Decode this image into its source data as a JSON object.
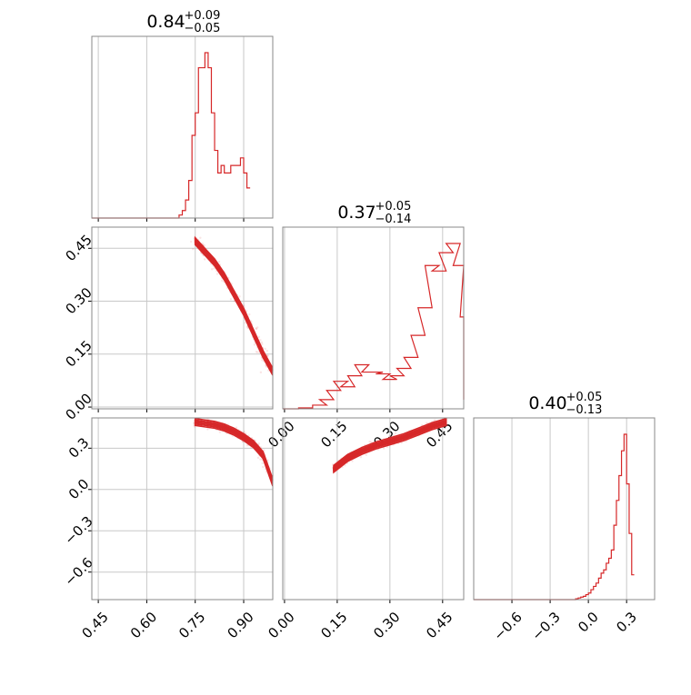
{
  "accent_color": "#d62728",
  "chart_data": [
    {
      "type": "histogram",
      "panel": "diag-1",
      "title": {
        "value": "0.84",
        "plus": "+0.09",
        "minus": "−0.05"
      },
      "xlim": [
        0.43,
        0.99
      ],
      "x_ticks": [
        0.45,
        0.6,
        0.75,
        0.9
      ],
      "grid": true,
      "bin_edges_start": 0.69,
      "bin_width": 0.01,
      "values": [
        0.0,
        0.02,
        0.05,
        0.12,
        0.25,
        0.55,
        0.7,
        1.0,
        1.0,
        1.1,
        1.0,
        0.7,
        0.45,
        0.3,
        0.35,
        0.3,
        0.3,
        0.35,
        0.35,
        0.35,
        0.4,
        0.3,
        0.2
      ]
    },
    {
      "type": "histogram",
      "panel": "diag-2",
      "title": {
        "value": "0.37",
        "plus": "+0.05",
        "minus": "−0.14"
      },
      "xlim": [
        -0.005,
        0.51
      ],
      "x_ticks": [
        0.0,
        0.15,
        0.3,
        0.45
      ],
      "grid": true,
      "values_xy": [
        [
          0.0,
          0.0
        ],
        [
          0.04,
          0.005
        ],
        [
          0.08,
          0.02
        ],
        [
          0.1,
          0.05
        ],
        [
          0.12,
          0.1
        ],
        [
          0.14,
          0.15
        ],
        [
          0.16,
          0.12
        ],
        [
          0.18,
          0.18
        ],
        [
          0.2,
          0.24
        ],
        [
          0.22,
          0.2
        ],
        [
          0.24,
          0.2
        ],
        [
          0.26,
          0.19
        ],
        [
          0.28,
          0.16
        ],
        [
          0.3,
          0.18
        ],
        [
          0.32,
          0.22
        ],
        [
          0.34,
          0.28
        ],
        [
          0.36,
          0.4
        ],
        [
          0.38,
          0.55
        ],
        [
          0.4,
          0.78
        ],
        [
          0.42,
          0.75
        ],
        [
          0.44,
          0.85
        ],
        [
          0.46,
          0.9
        ],
        [
          0.48,
          0.78
        ],
        [
          0.5,
          0.5
        ],
        [
          0.52,
          0.2
        ],
        [
          0.54,
          0.05
        ]
      ]
    },
    {
      "type": "histogram",
      "panel": "diag-3",
      "title": {
        "value": "0.40",
        "plus": "+0.05",
        "minus": "−0.13"
      },
      "xlim": [
        -0.9,
        0.52
      ],
      "x_ticks": [
        -0.6,
        -0.3,
        0.0,
        0.3
      ],
      "x_tick_labels": [
        "−0.6",
        "−0.3",
        "0.0",
        "0.3"
      ],
      "grid": true,
      "bin_edges_start": -0.1,
      "bin_width": 0.02,
      "values": [
        0.005,
        0.01,
        0.015,
        0.02,
        0.03,
        0.04,
        0.06,
        0.08,
        0.1,
        0.13,
        0.16,
        0.18,
        0.22,
        0.25,
        0.3,
        0.45,
        0.6,
        0.75,
        0.9,
        1.0,
        0.7,
        0.4,
        0.15
      ]
    },
    {
      "type": "scatter",
      "panel": "offdiag-2-1",
      "xlim": [
        0.43,
        0.99
      ],
      "ylim": [
        -0.005,
        0.51
      ],
      "y_ticks": [
        0.0,
        0.15,
        0.3,
        0.45
      ],
      "grid": true,
      "ridge_x": [
        0.75,
        0.78,
        0.81,
        0.84,
        0.87,
        0.9,
        0.93,
        0.96,
        0.99
      ],
      "ridge_y": [
        0.47,
        0.44,
        0.41,
        0.37,
        0.32,
        0.27,
        0.21,
        0.15,
        0.1
      ]
    },
    {
      "type": "scatter",
      "panel": "offdiag-3-1",
      "xlim": [
        0.43,
        0.99
      ],
      "ylim": [
        -0.8,
        0.52
      ],
      "y_ticks": [
        -0.6,
        -0.3,
        0.0,
        0.3
      ],
      "y_tick_labels": [
        "−0.6",
        "−0.3",
        "0.0",
        "0.3"
      ],
      "grid": true,
      "ridge_x": [
        0.75,
        0.78,
        0.81,
        0.84,
        0.87,
        0.9,
        0.93,
        0.96,
        0.99
      ],
      "ridge_y": [
        0.49,
        0.48,
        0.47,
        0.45,
        0.42,
        0.38,
        0.33,
        0.25,
        0.05
      ]
    },
    {
      "type": "scatter",
      "panel": "offdiag-3-2",
      "xlim": [
        -0.005,
        0.51
      ],
      "ylim": [
        -0.8,
        0.52
      ],
      "grid": true,
      "ridge_x": [
        0.14,
        0.18,
        0.22,
        0.26,
        0.3,
        0.34,
        0.38,
        0.42,
        0.46
      ],
      "ridge_y": [
        0.15,
        0.23,
        0.28,
        0.32,
        0.35,
        0.38,
        0.42,
        0.46,
        0.49
      ]
    }
  ]
}
